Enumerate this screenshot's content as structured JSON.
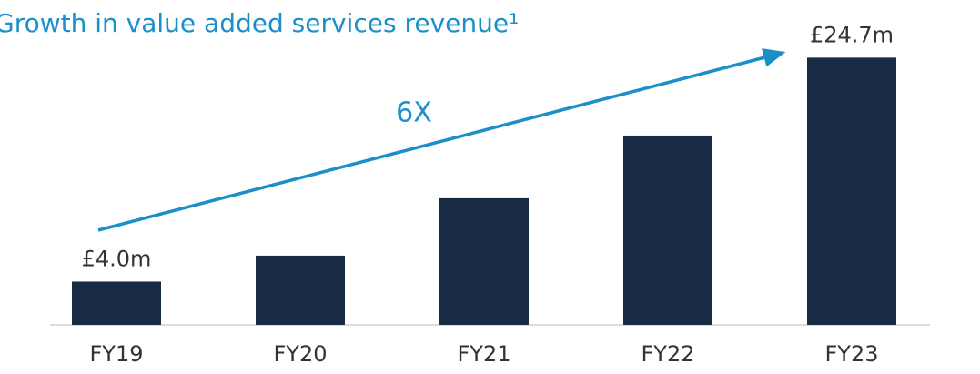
{
  "chart_data": {
    "type": "bar",
    "title": "Growth in value added services revenue¹",
    "categories": [
      "FY19",
      "FY20",
      "FY21",
      "FY22",
      "FY23"
    ],
    "values": [
      4.0,
      6.4,
      11.7,
      17.5,
      24.7
    ],
    "value_labels": [
      "£4.0m",
      null,
      null,
      null,
      "£24.7m"
    ],
    "color": "#172b45",
    "ylim": [
      0,
      27
    ],
    "annotation": "6X",
    "grid": false
  }
}
